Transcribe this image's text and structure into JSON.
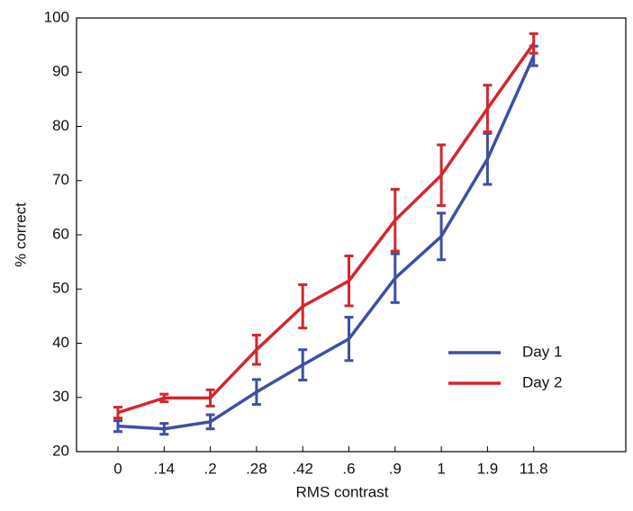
{
  "chart_data": {
    "type": "line",
    "xlabel": "RMS contrast",
    "ylabel": "% correct",
    "categories": [
      "0",
      ".14",
      ".2",
      ".28",
      ".42",
      ".6",
      ".9",
      "1",
      "1.9",
      "11.8"
    ],
    "series": [
      {
        "name": "Day 1",
        "color": "#3f4fa3",
        "values": [
          24.7,
          24.2,
          25.5,
          31,
          36,
          40.8,
          52,
          59.7,
          74,
          93
        ],
        "errors": [
          1,
          1,
          1.3,
          2.3,
          2.8,
          4,
          4.5,
          4.3,
          4.7,
          1.8
        ]
      },
      {
        "name": "Day 2",
        "color": "#d3272e",
        "values": [
          27.2,
          29.9,
          29.9,
          38.8,
          46.8,
          51.5,
          62.7,
          71,
          83.3,
          95.3
        ],
        "errors": [
          1,
          0.7,
          1.5,
          2.7,
          4,
          4.6,
          5.7,
          5.6,
          4.3,
          1.8
        ]
      }
    ],
    "ylim": [
      20,
      100
    ],
    "yticks": [
      20,
      30,
      40,
      50,
      60,
      70,
      80,
      90,
      100
    ],
    "legend": "lower right"
  }
}
